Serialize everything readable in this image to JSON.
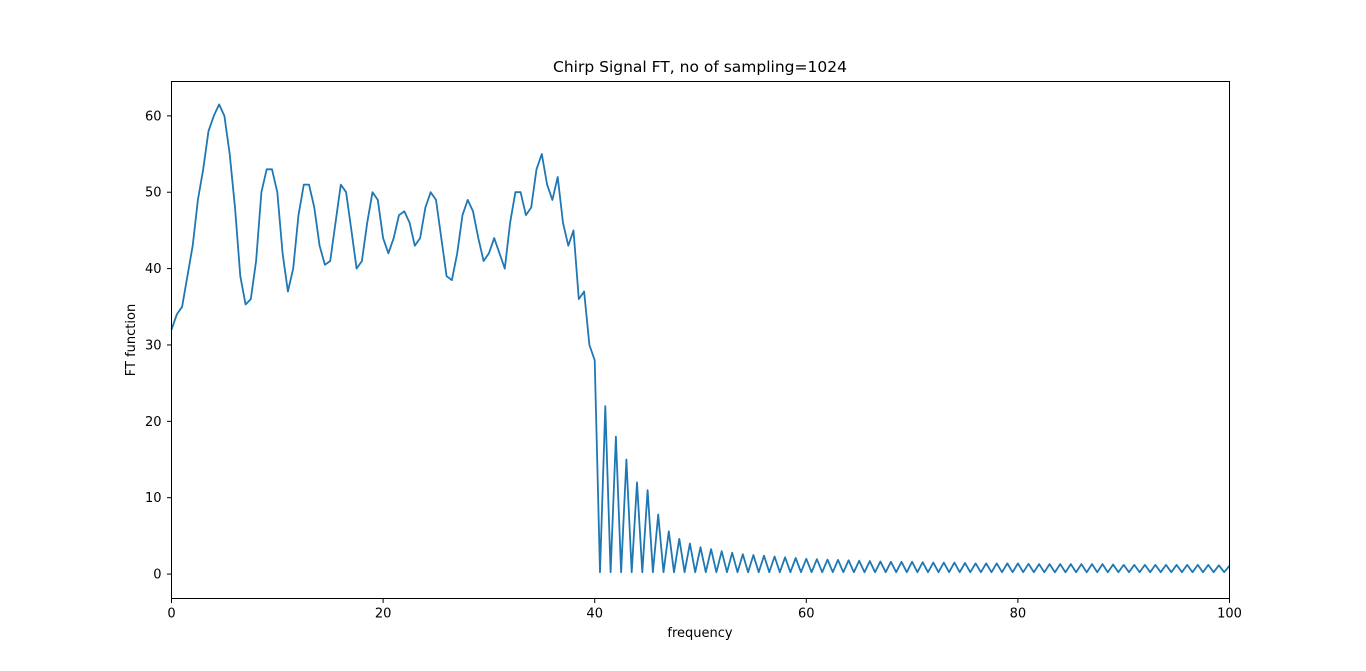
{
  "chart_data": {
    "type": "line",
    "title": "Chirp Signal FT, no of sampling=1024",
    "xlabel": "frequency",
    "ylabel": "FT function",
    "xlim": [
      0,
      100
    ],
    "ylim": [
      -3.2,
      64.5
    ],
    "xticks": [
      0,
      20,
      40,
      60,
      80,
      100
    ],
    "yticks": [
      0,
      10,
      20,
      30,
      40,
      50,
      60
    ],
    "grid": false,
    "color": "#1f77b4",
    "series": [
      {
        "x": [
          0,
          0.5,
          1,
          1.5,
          2,
          2.5,
          3,
          3.5,
          4,
          4.5,
          5,
          5.5,
          6,
          6.5,
          7,
          7.5,
          8,
          8.5,
          9,
          9.5,
          10,
          10.5,
          11,
          11.5,
          12,
          12.5,
          13,
          13.5,
          14,
          14.5,
          15,
          15.5,
          16,
          16.5,
          17,
          17.5,
          18,
          18.5,
          19,
          19.5,
          20,
          20.5,
          21,
          21.5,
          22,
          22.5,
          23,
          23.5,
          24,
          24.5,
          25,
          25.5,
          26,
          26.5,
          27,
          27.5,
          28,
          28.5,
          29,
          29.5,
          30,
          30.5,
          31,
          31.5,
          32,
          32.5,
          33,
          33.5,
          34,
          34.5,
          35,
          35.5,
          36,
          36.5,
          37,
          37.5,
          38,
          38.5,
          39,
          39.5,
          40,
          41,
          42,
          43,
          44,
          45,
          46,
          47,
          48,
          49,
          50,
          52,
          54,
          56,
          58,
          60,
          62,
          64,
          66,
          68,
          70,
          72,
          74,
          76,
          78,
          80,
          82,
          84,
          86,
          88,
          90,
          92,
          94,
          96,
          98,
          100
        ],
        "y": [
          32,
          34,
          35,
          39,
          43,
          49,
          53,
          58,
          60,
          61.5,
          60,
          55,
          48,
          39,
          35.3,
          36,
          41,
          50,
          53,
          53,
          50,
          42,
          37,
          40,
          47,
          51,
          51,
          48,
          43,
          40.5,
          41,
          46,
          51,
          50,
          45,
          40,
          41,
          46,
          50,
          49,
          44,
          42,
          44,
          47,
          47.5,
          46,
          43,
          44,
          48,
          50,
          49,
          44,
          39,
          38.5,
          42,
          47,
          49,
          47.5,
          44,
          41,
          42,
          44,
          42,
          40,
          46,
          50,
          50,
          47,
          48,
          53,
          55,
          51,
          49,
          52,
          46,
          43,
          45,
          36,
          37,
          30,
          28,
          22,
          18,
          15,
          12,
          11,
          7.8,
          5.6,
          4.6,
          4,
          3.5,
          3,
          2.6,
          2.4,
          2.2,
          2,
          1.9,
          1.8,
          1.7,
          1.6,
          1.6,
          1.5,
          1.5,
          1.4,
          1.4,
          1.4,
          1.3,
          1.3,
          1.3,
          1.3,
          1.2,
          1.2,
          1.2,
          1.2,
          1.2,
          1.1
        ]
      }
    ]
  }
}
